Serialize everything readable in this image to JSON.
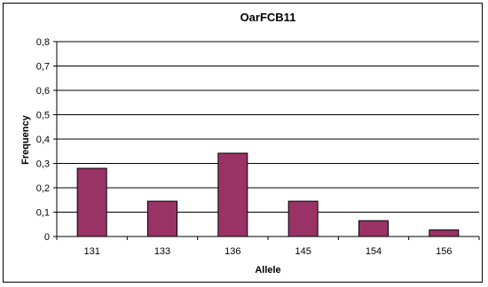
{
  "chart_data": {
    "type": "bar",
    "title": "OarFCB11",
    "xlabel": "Allele",
    "ylabel": "Frequency",
    "categories": [
      "131",
      "133",
      "136",
      "145",
      "154",
      "156"
    ],
    "values": [
      0.28,
      0.145,
      0.342,
      0.145,
      0.065,
      0.027
    ],
    "ylim": [
      0,
      0.8
    ],
    "ytick_values": [
      0,
      0.1,
      0.2,
      0.3,
      0.4,
      0.5,
      0.6,
      0.7,
      0.8
    ],
    "ytick_labels": [
      "0",
      "0,1",
      "0,2",
      "0,3",
      "0,4",
      "0,5",
      "0,6",
      "0,7",
      "0,8"
    ],
    "grid": true,
    "legend": "none",
    "colors": {
      "bar": "#993366",
      "bar_edge": "#000000",
      "grid": "#000000",
      "background": "#ffffff"
    }
  }
}
